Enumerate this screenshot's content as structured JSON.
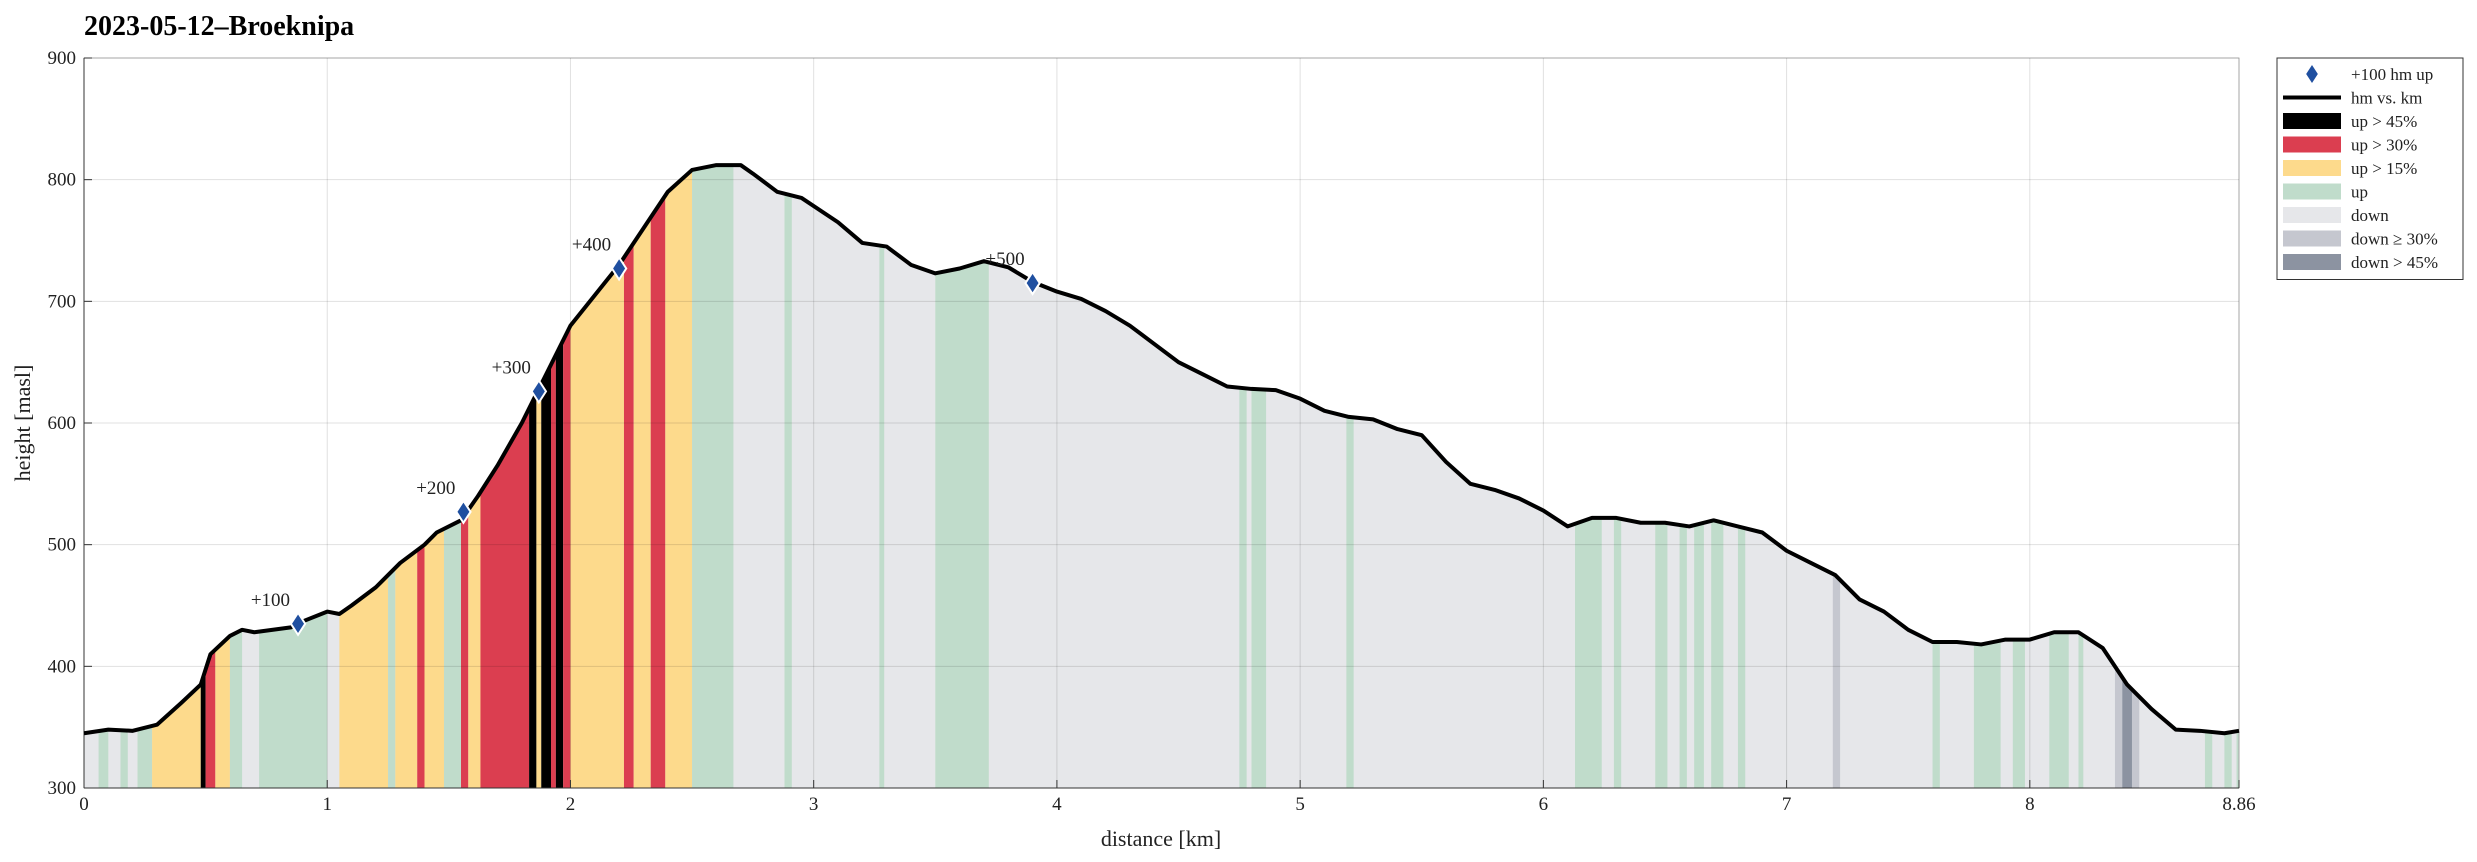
{
  "chart_data": {
    "type": "elevation-profile",
    "title": "2023-05-12–Broeknipa",
    "x_label": "distance [km]",
    "y_label": "height [masl]",
    "xlim": [
      0,
      8.86
    ],
    "xticks": [
      0,
      1,
      2,
      3,
      4,
      5,
      6,
      7,
      8,
      {
        "value": 8.86,
        "label": "8.86"
      }
    ],
    "ylim": [
      300,
      900
    ],
    "yticks": [
      300,
      400,
      500,
      600,
      700,
      800,
      900
    ],
    "grid": true,
    "legend": "outside-right",
    "series": [
      {
        "name": "+100 hm up",
        "type": "marker",
        "color": "#1f4fa0",
        "x": [
          0.88,
          1.56,
          1.87,
          2.2,
          3.9
        ],
        "values": [
          435,
          527,
          626,
          727,
          715
        ],
        "point_labels": [
          "+100",
          "+200",
          "+300",
          "+400",
          "+500"
        ]
      },
      {
        "name": "hm vs. km",
        "type": "line",
        "color": "#000000",
        "x": [
          0,
          0.1,
          0.2,
          0.3,
          0.4,
          0.48,
          0.52,
          0.6,
          0.65,
          0.7,
          0.85,
          0.9,
          1.0,
          1.05,
          1.1,
          1.2,
          1.3,
          1.4,
          1.45,
          1.55,
          1.62,
          1.7,
          1.8,
          1.9,
          2.0,
          2.1,
          2.2,
          2.3,
          2.4,
          2.5,
          2.6,
          2.7,
          2.75,
          2.85,
          2.95,
          3.1,
          3.2,
          3.3,
          3.4,
          3.5,
          3.6,
          3.7,
          3.8,
          3.9,
          4.0,
          4.1,
          4.2,
          4.3,
          4.4,
          4.5,
          4.6,
          4.7,
          4.8,
          4.9,
          5.0,
          5.1,
          5.2,
          5.3,
          5.4,
          5.5,
          5.6,
          5.7,
          5.8,
          5.9,
          6.0,
          6.1,
          6.2,
          6.3,
          6.4,
          6.5,
          6.6,
          6.7,
          6.8,
          6.9,
          7.0,
          7.1,
          7.2,
          7.3,
          7.4,
          7.5,
          7.6,
          7.7,
          7.8,
          7.9,
          8.0,
          8.1,
          8.2,
          8.3,
          8.4,
          8.5,
          8.6,
          8.7,
          8.8,
          8.86
        ],
        "values": [
          345,
          348,
          347,
          352,
          370,
          385,
          410,
          425,
          430,
          428,
          432,
          437,
          445,
          443,
          450,
          465,
          485,
          500,
          510,
          520,
          540,
          565,
          600,
          640,
          680,
          705,
          730,
          760,
          790,
          808,
          812,
          812,
          805,
          790,
          785,
          765,
          748,
          745,
          730,
          723,
          727,
          733,
          728,
          716,
          708,
          702,
          692,
          680,
          665,
          650,
          640,
          630,
          628,
          627,
          620,
          610,
          605,
          603,
          595,
          590,
          568,
          550,
          545,
          538,
          528,
          515,
          522,
          522,
          518,
          518,
          515,
          520,
          515,
          510,
          495,
          485,
          475,
          455,
          445,
          430,
          420,
          420,
          418,
          422,
          422,
          428,
          428,
          415,
          385,
          365,
          348,
          347,
          345,
          347
        ]
      }
    ],
    "band_categories": [
      {
        "name": "up > 45%",
        "color": "#000000"
      },
      {
        "name": "up > 30%",
        "color": "#db3e50"
      },
      {
        "name": "up > 15%",
        "color": "#fdda8c"
      },
      {
        "name": "up",
        "color": "#c0dccb"
      },
      {
        "name": "down",
        "color": "#e6e7ea"
      },
      {
        "name": "down ≥ 30%",
        "color": "#c5c7cf"
      },
      {
        "name": "down > 45%",
        "color": "#8c93a1"
      }
    ],
    "bands": [
      {
        "start": 0,
        "end": 8.86,
        "kind": 4
      },
      {
        "start": 0.06,
        "end": 0.1,
        "kind": 3
      },
      {
        "start": 0.15,
        "end": 0.18,
        "kind": 3
      },
      {
        "start": 0.22,
        "end": 0.28,
        "kind": 3
      },
      {
        "start": 0.28,
        "end": 0.48,
        "kind": 2
      },
      {
        "start": 0.48,
        "end": 0.5,
        "kind": 0
      },
      {
        "start": 0.5,
        "end": 0.54,
        "kind": 1
      },
      {
        "start": 0.54,
        "end": 0.6,
        "kind": 2
      },
      {
        "start": 0.6,
        "end": 0.65,
        "kind": 3
      },
      {
        "start": 0.72,
        "end": 1.0,
        "kind": 3
      },
      {
        "start": 1.05,
        "end": 1.25,
        "kind": 2
      },
      {
        "start": 1.25,
        "end": 1.28,
        "kind": 3
      },
      {
        "start": 1.28,
        "end": 1.37,
        "kind": 2
      },
      {
        "start": 1.37,
        "end": 1.4,
        "kind": 1
      },
      {
        "start": 1.4,
        "end": 1.48,
        "kind": 2
      },
      {
        "start": 1.48,
        "end": 1.55,
        "kind": 3
      },
      {
        "start": 1.55,
        "end": 1.58,
        "kind": 1
      },
      {
        "start": 1.58,
        "end": 1.63,
        "kind": 2
      },
      {
        "start": 1.63,
        "end": 1.83,
        "kind": 1
      },
      {
        "start": 1.83,
        "end": 1.86,
        "kind": 0
      },
      {
        "start": 1.86,
        "end": 1.88,
        "kind": 2
      },
      {
        "start": 1.88,
        "end": 1.92,
        "kind": 0
      },
      {
        "start": 1.92,
        "end": 1.94,
        "kind": 1
      },
      {
        "start": 1.94,
        "end": 1.97,
        "kind": 0
      },
      {
        "start": 1.97,
        "end": 2.0,
        "kind": 1
      },
      {
        "start": 2.0,
        "end": 2.22,
        "kind": 2
      },
      {
        "start": 2.22,
        "end": 2.26,
        "kind": 1
      },
      {
        "start": 2.26,
        "end": 2.33,
        "kind": 2
      },
      {
        "start": 2.33,
        "end": 2.39,
        "kind": 1
      },
      {
        "start": 2.39,
        "end": 2.5,
        "kind": 2
      },
      {
        "start": 2.5,
        "end": 2.67,
        "kind": 3
      },
      {
        "start": 2.88,
        "end": 2.91,
        "kind": 3
      },
      {
        "start": 3.27,
        "end": 3.29,
        "kind": 3
      },
      {
        "start": 3.5,
        "end": 3.72,
        "kind": 3
      },
      {
        "start": 4.75,
        "end": 4.78,
        "kind": 3
      },
      {
        "start": 4.8,
        "end": 4.86,
        "kind": 3
      },
      {
        "start": 5.19,
        "end": 5.22,
        "kind": 3
      },
      {
        "start": 6.13,
        "end": 6.24,
        "kind": 3
      },
      {
        "start": 6.29,
        "end": 6.32,
        "kind": 3
      },
      {
        "start": 6.46,
        "end": 6.51,
        "kind": 3
      },
      {
        "start": 6.56,
        "end": 6.59,
        "kind": 3
      },
      {
        "start": 6.62,
        "end": 6.66,
        "kind": 3
      },
      {
        "start": 6.69,
        "end": 6.74,
        "kind": 3
      },
      {
        "start": 6.8,
        "end": 6.83,
        "kind": 3
      },
      {
        "start": 7.19,
        "end": 7.22,
        "kind": 5
      },
      {
        "start": 7.6,
        "end": 7.63,
        "kind": 3
      },
      {
        "start": 7.77,
        "end": 7.88,
        "kind": 3
      },
      {
        "start": 7.93,
        "end": 7.98,
        "kind": 3
      },
      {
        "start": 8.08,
        "end": 8.16,
        "kind": 3
      },
      {
        "start": 8.2,
        "end": 8.22,
        "kind": 3
      },
      {
        "start": 8.35,
        "end": 8.38,
        "kind": 5
      },
      {
        "start": 8.38,
        "end": 8.42,
        "kind": 6
      },
      {
        "start": 8.42,
        "end": 8.45,
        "kind": 5
      },
      {
        "start": 8.72,
        "end": 8.75,
        "kind": 3
      },
      {
        "start": 8.8,
        "end": 8.83,
        "kind": 3
      },
      {
        "start": 8.85,
        "end": 8.86,
        "kind": 3
      }
    ]
  }
}
